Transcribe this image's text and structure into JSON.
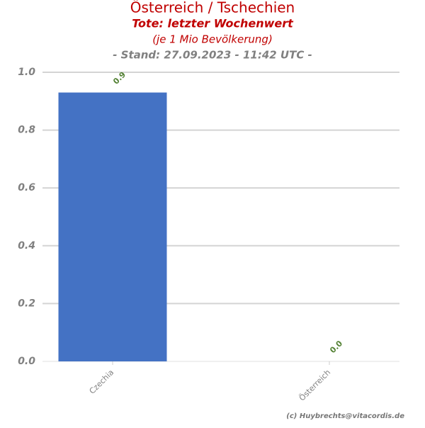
{
  "chart_data": {
    "type": "bar",
    "title": "Österreich / Tschechien",
    "subtitle": "Tote: letzter Wochenwert",
    "subtitle2": "(je 1 Mio Bevölkerung)",
    "subtitle3": "- Stand: 27.09.2023 - 11:42 UTC -",
    "credit": "(c) Huybrechts@vitacordis.de",
    "categories": [
      "Czechia",
      "Österreich"
    ],
    "values": [
      0.93,
      0
    ],
    "value_labels": [
      "0.9",
      "0.0"
    ],
    "color": "#4472c4",
    "ylim": [
      0,
      1
    ],
    "yticks": [
      {
        "value": 0,
        "label": "0.0"
      },
      {
        "value": 0.2,
        "label": "0.2"
      },
      {
        "value": 0.4,
        "label": "0.4"
      },
      {
        "value": 0.6,
        "label": "0.6"
      },
      {
        "value": 0.8,
        "label": "0.8"
      },
      {
        "value": 1,
        "label": "1.0"
      }
    ],
    "grid": true
  }
}
